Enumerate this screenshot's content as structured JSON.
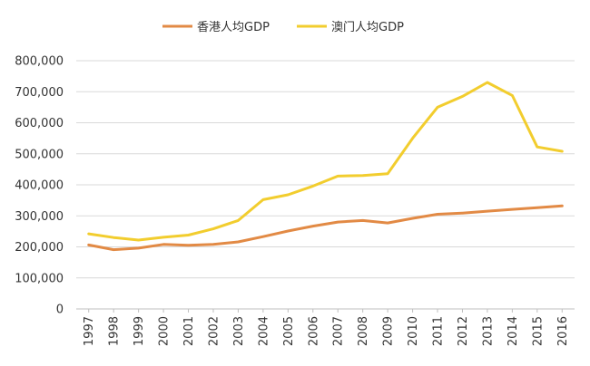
{
  "chart_data": {
    "type": "line",
    "title": "",
    "xlabel": "",
    "ylabel": "",
    "ylim": [
      0,
      800000
    ],
    "y_ticks": [
      0,
      100000,
      200000,
      300000,
      400000,
      500000,
      600000,
      700000,
      800000
    ],
    "y_tick_labels": [
      "0",
      "100,000",
      "200,000",
      "300,000",
      "400,000",
      "500,000",
      "600,000",
      "700,000",
      "800,000"
    ],
    "grid": "horizontal",
    "legend_position": "top-center",
    "categories": [
      "1997",
      "1998",
      "1999",
      "2000",
      "2001",
      "2002",
      "2003",
      "2004",
      "2005",
      "2006",
      "2007",
      "2008",
      "2009",
      "2010",
      "2011",
      "2012",
      "2013",
      "2014",
      "2015",
      "2016"
    ],
    "series": [
      {
        "name": "香港人均GDP",
        "color": "#E28A45",
        "values": [
          206000,
          191000,
          196000,
          208000,
          205000,
          208000,
          216000,
          233000,
          251000,
          267000,
          280000,
          285000,
          277000,
          292000,
          305000,
          309000,
          315000,
          321000,
          326000,
          332000
        ]
      },
      {
        "name": "澳门人均GDP",
        "color": "#F2CD2E",
        "values": [
          242000,
          230000,
          222000,
          231000,
          238000,
          258000,
          285000,
          352000,
          368000,
          396000,
          428000,
          430000,
          436000,
          550000,
          650000,
          685000,
          730000,
          688000,
          522000,
          508000
        ]
      }
    ]
  }
}
